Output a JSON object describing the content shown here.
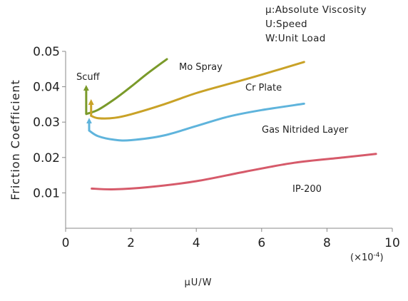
{
  "legend": {
    "lines": [
      "μ:Absolute Viscosity",
      "U:Speed",
      "W:Unit Load"
    ]
  },
  "chart_data": {
    "type": "line",
    "xlabel": "μU/W",
    "ylabel": "Friction Coefficient",
    "x_multiplier": "(×10",
    "x_multiplier_exp": "-4",
    "x_multiplier_close": ")",
    "xlim": [
      0,
      10
    ],
    "ylim": [
      0,
      0.05
    ],
    "xticks": [
      "0",
      "2",
      "4",
      "6",
      "8",
      "10"
    ],
    "yticks": [
      "0.01",
      "0.02",
      "0.03",
      "0.04",
      "0.05"
    ],
    "grid": false,
    "scuff_label": "Scuff",
    "series": [
      {
        "name": "Mo Spray",
        "color": "#7a9a2a",
        "points": [
          [
            0.63,
            0.0323
          ],
          [
            1.0,
            0.0335
          ],
          [
            1.5,
            0.0365
          ],
          [
            2.0,
            0.04
          ],
          [
            2.5,
            0.0437
          ],
          [
            3.1,
            0.0478
          ]
        ],
        "scuff_arrow": {
          "x": 0.63,
          "y_from": 0.0323,
          "y_to": 0.0405
        }
      },
      {
        "name": "Cr Plate",
        "color": "#c9a227",
        "points": [
          [
            0.78,
            0.0318
          ],
          [
            1.0,
            0.0311
          ],
          [
            1.5,
            0.0312
          ],
          [
            2.0,
            0.0322
          ],
          [
            3.0,
            0.035
          ],
          [
            4.0,
            0.0382
          ],
          [
            5.0,
            0.0408
          ],
          [
            6.0,
            0.0434
          ],
          [
            7.3,
            0.047
          ]
        ],
        "scuff_arrow": {
          "x": 0.78,
          "y_from": 0.0318,
          "y_to": 0.0365
        }
      },
      {
        "name": "Gas Nitrided Layer",
        "color": "#5fb4dc",
        "points": [
          [
            0.72,
            0.0276
          ],
          [
            1.0,
            0.026
          ],
          [
            1.5,
            0.025
          ],
          [
            2.0,
            0.0249
          ],
          [
            3.0,
            0.0262
          ],
          [
            4.0,
            0.0289
          ],
          [
            5.0,
            0.0316
          ],
          [
            6.0,
            0.0334
          ],
          [
            7.3,
            0.0352
          ]
        ],
        "scuff_arrow": {
          "x": 0.72,
          "y_from": 0.0276,
          "y_to": 0.0312
        }
      },
      {
        "name": "IP-200",
        "color": "#d65a6a",
        "points": [
          [
            0.8,
            0.0112
          ],
          [
            1.5,
            0.011
          ],
          [
            2.5,
            0.0116
          ],
          [
            4.0,
            0.0133
          ],
          [
            5.5,
            0.016
          ],
          [
            7.0,
            0.0185
          ],
          [
            8.5,
            0.02
          ],
          [
            9.5,
            0.021
          ]
        ],
        "scuff_arrow": null
      }
    ]
  }
}
